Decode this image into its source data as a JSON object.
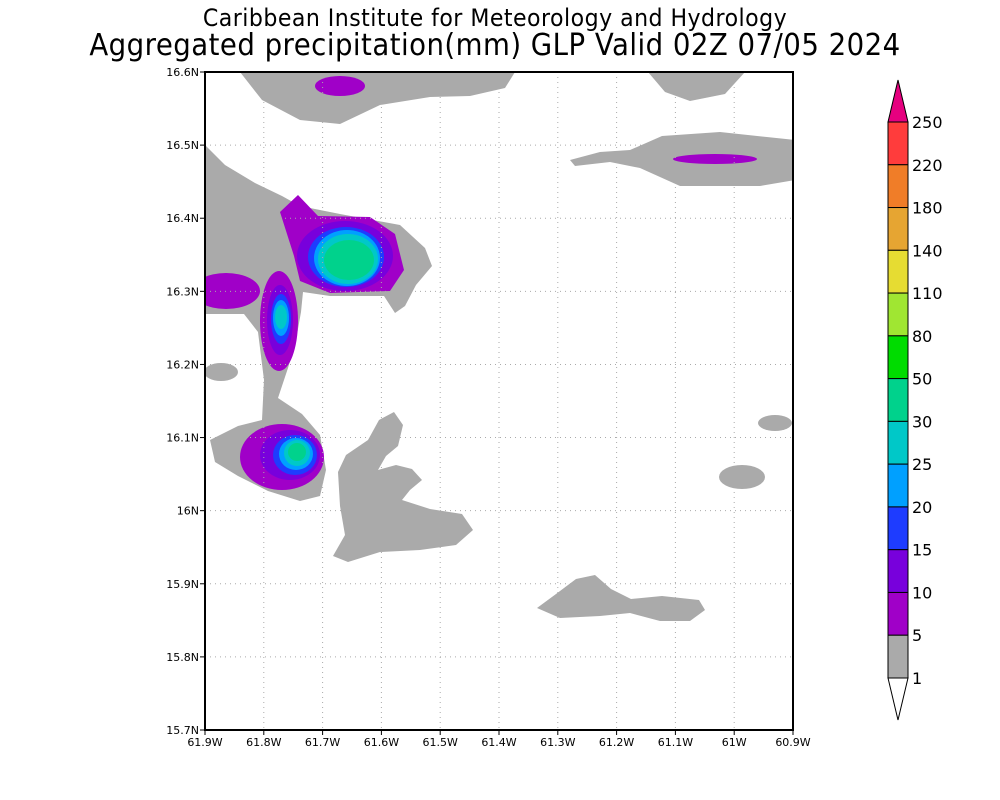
{
  "header": {
    "institution": "Caribbean Institute for Meteorology and Hydrology",
    "title": "Aggregated precipitation(mm) GLP Valid 02Z 07/05 2024"
  },
  "map": {
    "x_ticks": [
      "61.9W",
      "61.8W",
      "61.7W",
      "61.6W",
      "61.5W",
      "61.4W",
      "61.3W",
      "61.2W",
      "61.1W",
      "61W",
      "60.9W"
    ],
    "y_ticks": [
      "16.6N",
      "16.5N",
      "16.4N",
      "16.3N",
      "16.2N",
      "16.1N",
      "16N",
      "15.9N",
      "15.8N",
      "15.7N"
    ],
    "grid": "dotted"
  },
  "colorbar": {
    "labels": [
      "250",
      "220",
      "180",
      "140",
      "110",
      "80",
      "50",
      "30",
      "25",
      "20",
      "15",
      "10",
      "5",
      "1"
    ],
    "colors": [
      "#e6007f",
      "#ff3c3c",
      "#f07d28",
      "#e6a532",
      "#e6dc32",
      "#a0e632",
      "#00dc00",
      "#00d28c",
      "#00c8c8",
      "#00a0ff",
      "#1e3cff",
      "#7800dc",
      "#a000c8",
      "#aaaaaa",
      "#ffffff"
    ]
  }
}
